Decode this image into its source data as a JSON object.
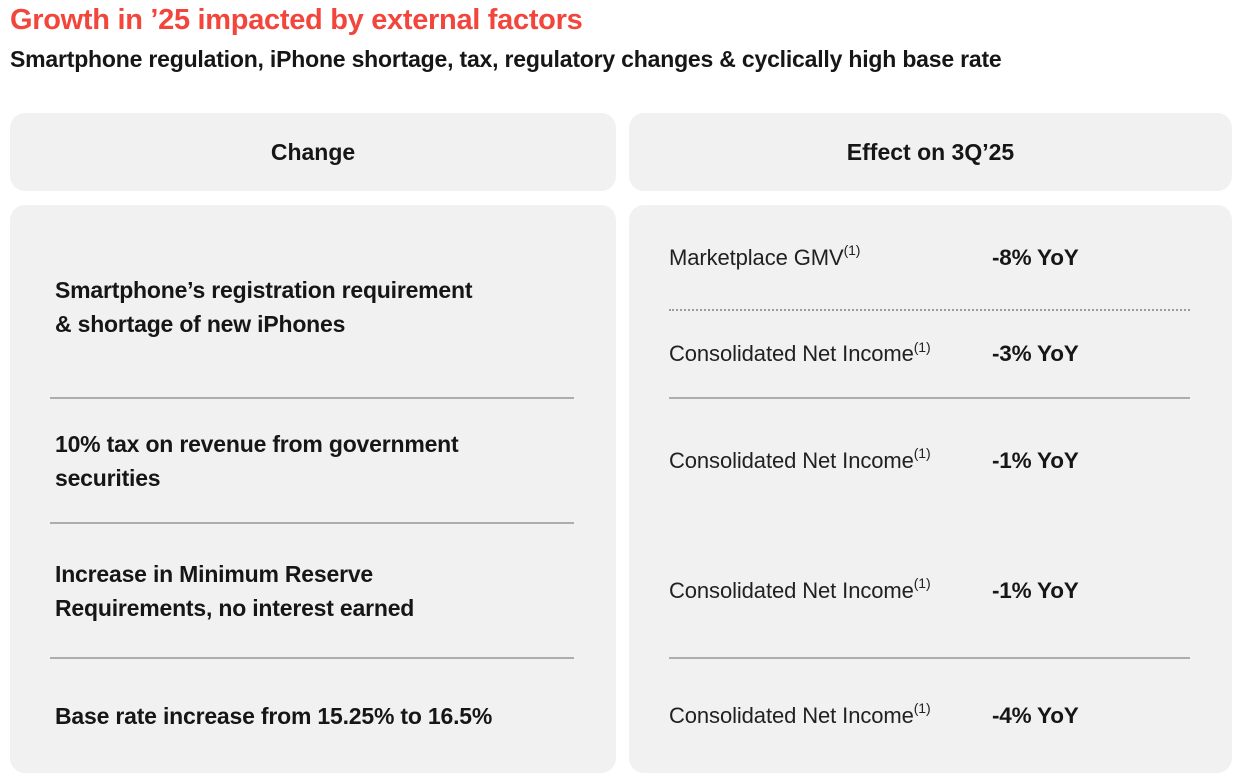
{
  "header": {
    "title": "Growth in ’25 impacted by external factors",
    "subtitle": "Smartphone regulation, iPhone shortage, tax, regulatory changes & cyclically high base rate"
  },
  "table": {
    "column_headers": {
      "change": "Change",
      "effect": "Effect on 3Q’25"
    },
    "changes": [
      {
        "text": "Smartphone’s registration requirement\n& shortage of new iPhones"
      },
      {
        "text": "10% tax on revenue from government\nsecurities"
      },
      {
        "text": "Increase in Minimum Reserve\nRequirements, no interest earned"
      },
      {
        "text": "Base rate increase from 15.25% to 16.5%"
      }
    ],
    "effects": [
      {
        "metric": "Marketplace GMV",
        "footnote": "(1)",
        "value": "-8% YoY"
      },
      {
        "metric": "Consolidated Net Income",
        "footnote": "(1)",
        "value": "-3% YoY"
      },
      {
        "metric": "Consolidated Net Income",
        "footnote": "(1)",
        "value": "-1% YoY"
      },
      {
        "metric": "Consolidated Net Income",
        "footnote": "(1)",
        "value": "-1% YoY"
      },
      {
        "metric": "Consolidated Net Income",
        "footnote": "(1)",
        "value": "-4% YoY"
      }
    ]
  },
  "colors": {
    "accent_red": "#F2463C",
    "panel_gray": "#F1F1F1",
    "divider_solid": "#ADADAD",
    "divider_dotted": "#9B9B9B",
    "text_dark": "#161616"
  }
}
